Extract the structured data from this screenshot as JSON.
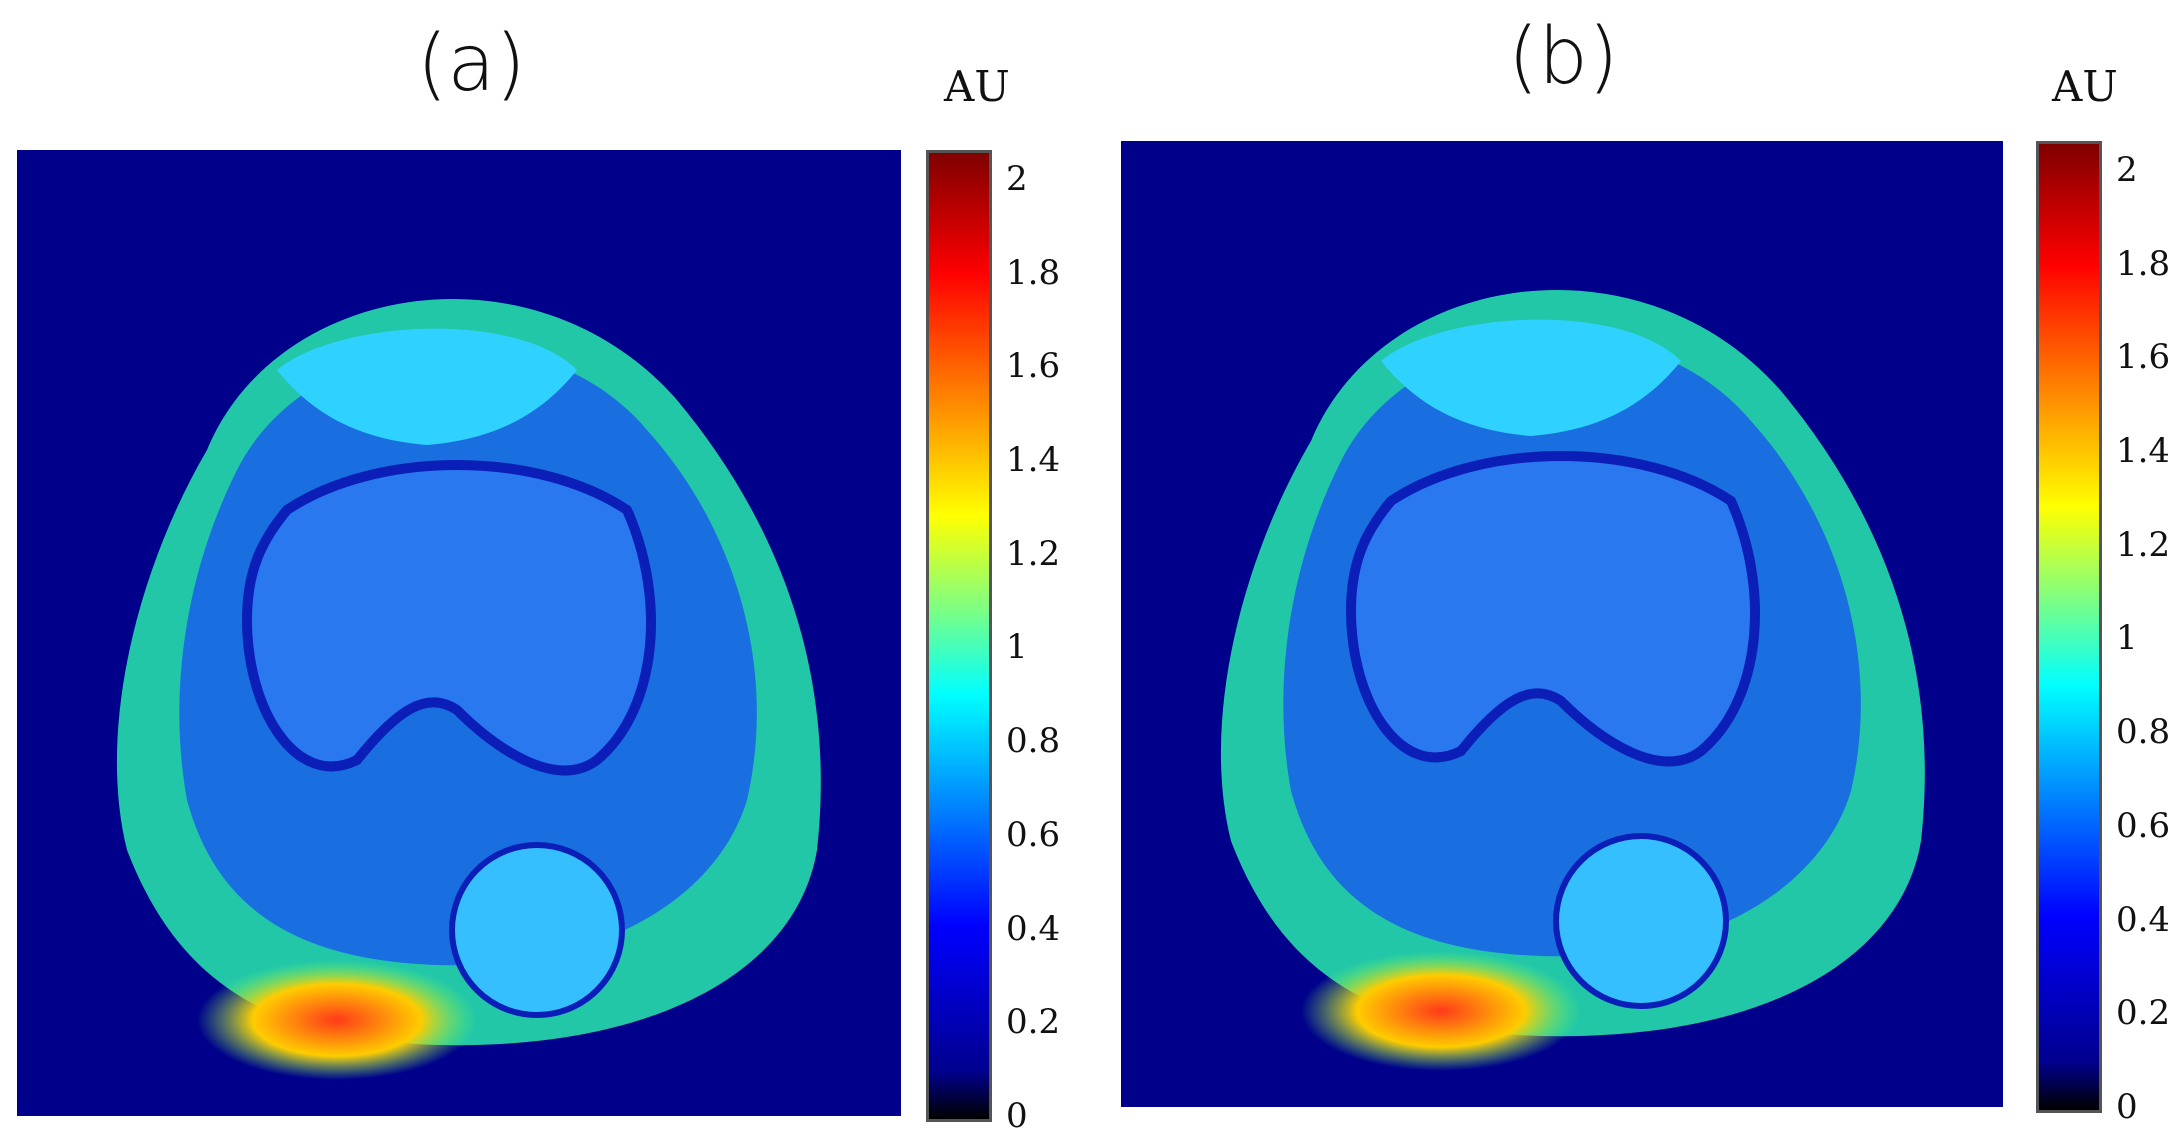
{
  "panels": [
    {
      "label": "(a)",
      "colorbar": {
        "unit": "AU",
        "ticks": [
          "2",
          "1.8",
          "1.6",
          "1.4",
          "1.2",
          "1",
          "0.8",
          "0.6",
          "0.4",
          "0.2",
          "0"
        ]
      }
    },
    {
      "label": "(b)",
      "colorbar": {
        "unit": "AU",
        "ticks": [
          "2",
          "1.8",
          "1.6",
          "1.4",
          "1.2",
          "1",
          "0.8",
          "0.6",
          "0.4",
          "0.2",
          "0"
        ]
      }
    }
  ],
  "colors": {
    "background": "#00008b",
    "tissue": "#1a6fe0",
    "fat": "#22c7a8",
    "hot": "#ff3a1a"
  }
}
